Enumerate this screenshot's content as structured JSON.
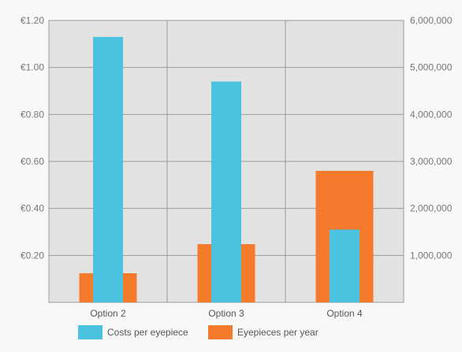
{
  "chart_data": {
    "type": "bar",
    "categories": [
      "Option 2",
      "Option 3",
      "Option 4"
    ],
    "series": [
      {
        "name": "Eyepieces per year",
        "axis": "right",
        "color": "#f47a2c",
        "values": [
          620000,
          1240000,
          2800000
        ]
      },
      {
        "name": "Costs per eyepiece",
        "axis": "left",
        "color": "#4bc2df",
        "values": [
          1.13,
          0.94,
          0.31
        ]
      }
    ],
    "left_axis": {
      "ylim": [
        0,
        1.2
      ],
      "ticks": [
        0.2,
        0.4,
        0.6,
        0.8,
        1.0,
        1.2
      ],
      "tick_labels": [
        "€0.20",
        "€0.40",
        "€0.60",
        "€0.80",
        "€1.00",
        "€1.20"
      ]
    },
    "right_axis": {
      "ylim": [
        0,
        6000000
      ],
      "ticks": [
        1000000,
        2000000,
        3000000,
        4000000,
        5000000,
        6000000
      ],
      "tick_labels": [
        "1,000,000",
        "2,000,000",
        "3,000,000",
        "4,000,000",
        "5,000,000",
        "6,000,000"
      ]
    },
    "grid": true,
    "legend_position": "bottom",
    "legend": [
      "Costs per eyepiece",
      "Eyepieces per year"
    ],
    "colors": {
      "plot_background": "#e2e2e2",
      "grid": "#9a9a9a",
      "axis_text": "#777777"
    }
  }
}
